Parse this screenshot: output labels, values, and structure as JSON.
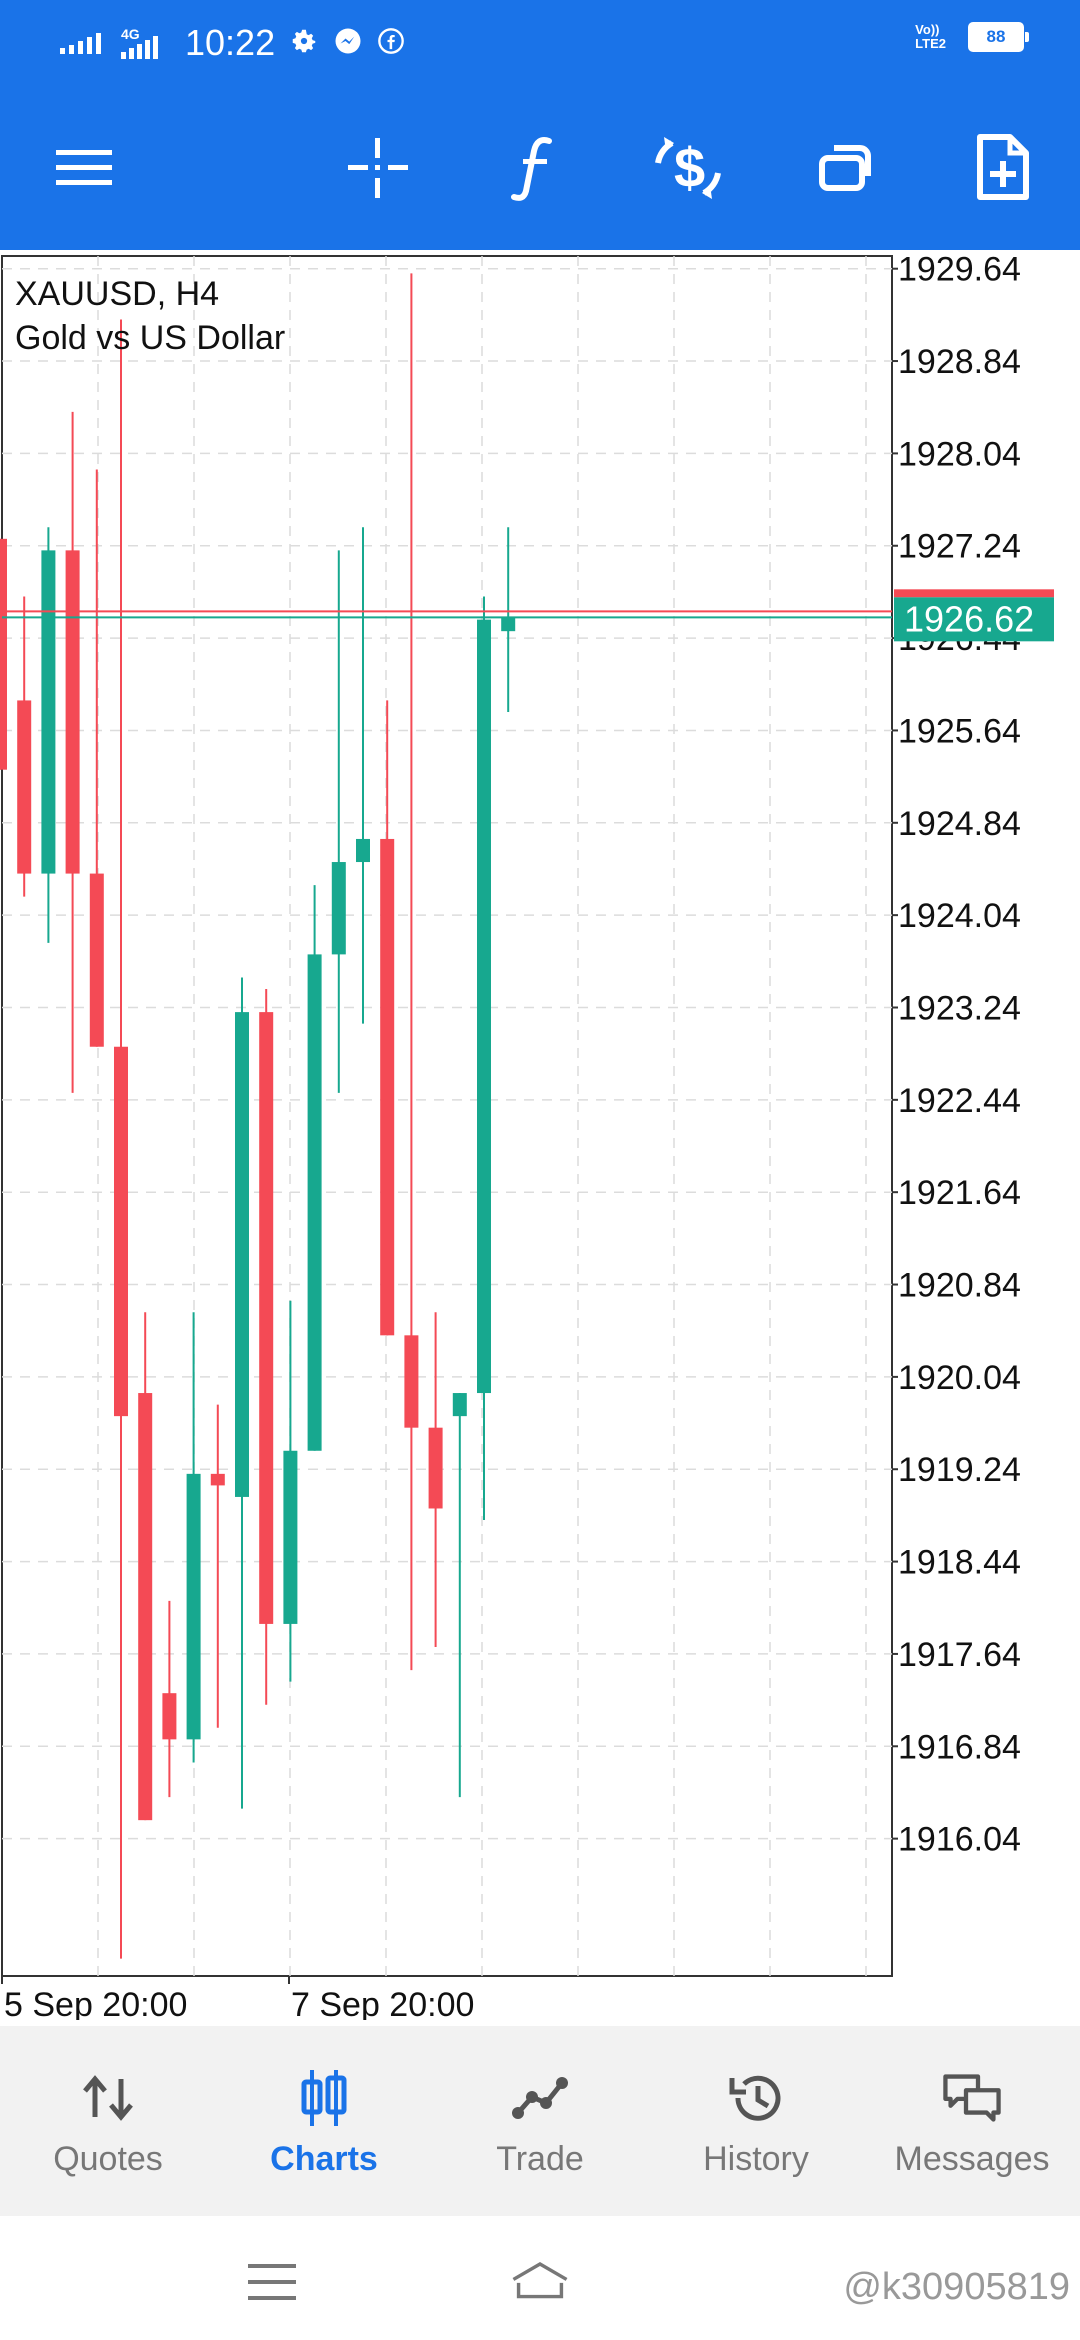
{
  "status_bar": {
    "time": "10:22",
    "network_label": "4G",
    "volte_line1": "Vo))",
    "volte_line2": "LTE2",
    "battery": "88"
  },
  "toolbar": {
    "icons": [
      "menu-icon",
      "crosshair-icon",
      "indicators-icon",
      "trade-icon",
      "windows-icon",
      "new-order-icon"
    ],
    "color": "#1a73e8"
  },
  "chart": {
    "symbol_line": "XAUUSD, H4",
    "description": "Gold vs US Dollar",
    "current_price": "1926.62",
    "price_labels": [
      "1929.64",
      "1928.84",
      "1928.04",
      "1927.24",
      "1926.44",
      "1925.64",
      "1924.84",
      "1924.04",
      "1923.24",
      "1922.44",
      "1921.64",
      "1920.84",
      "1920.04",
      "1919.24",
      "1918.44",
      "1917.64",
      "1916.84",
      "1916.04"
    ],
    "time_labels": [
      "5 Sep 20:00",
      "7 Sep 20:00"
    ],
    "colors": {
      "bull": "#17a88f",
      "bear": "#f44a55",
      "grid": "#dcdcdc",
      "axis": "#333333"
    }
  },
  "chart_data": {
    "type": "candlestick",
    "title": "XAUUSD, H4",
    "subtitle": "Gold vs US Dollar",
    "ylim": [
      1914.85,
      1929.75
    ],
    "last_price": 1926.62,
    "candles": [
      {
        "o": 1927.3,
        "h": 1927.3,
        "l": 1925.3,
        "c": 1925.3
      },
      {
        "o": 1925.9,
        "h": 1926.8,
        "l": 1924.2,
        "c": 1924.4
      },
      {
        "o": 1924.4,
        "h": 1927.4,
        "l": 1923.8,
        "c": 1927.2
      },
      {
        "o": 1927.2,
        "h": 1928.4,
        "l": 1922.5,
        "c": 1924.4
      },
      {
        "o": 1924.4,
        "h": 1927.9,
        "l": 1922.9,
        "c": 1922.9
      },
      {
        "o": 1922.9,
        "h": 1929.2,
        "l": 1915.0,
        "c": 1919.7
      },
      {
        "o": 1919.9,
        "h": 1920.6,
        "l": 1916.2,
        "c": 1916.2
      },
      {
        "o": 1917.3,
        "h": 1918.1,
        "l": 1916.4,
        "c": 1916.9
      },
      {
        "o": 1916.9,
        "h": 1920.6,
        "l": 1916.7,
        "c": 1919.2
      },
      {
        "o": 1919.2,
        "h": 1919.8,
        "l": 1917.0,
        "c": 1919.1
      },
      {
        "o": 1919.0,
        "h": 1923.5,
        "l": 1916.3,
        "c": 1923.2
      },
      {
        "o": 1923.2,
        "h": 1923.4,
        "l": 1917.2,
        "c": 1917.9
      },
      {
        "o": 1917.9,
        "h": 1920.7,
        "l": 1917.4,
        "c": 1919.4
      },
      {
        "o": 1919.4,
        "h": 1924.3,
        "l": 1919.4,
        "c": 1923.7
      },
      {
        "o": 1923.7,
        "h": 1927.2,
        "l": 1922.5,
        "c": 1924.5
      },
      {
        "o": 1924.5,
        "h": 1927.4,
        "l": 1923.1,
        "c": 1924.7
      },
      {
        "o": 1924.7,
        "h": 1925.9,
        "l": 1920.4,
        "c": 1920.4
      },
      {
        "o": 1920.4,
        "h": 1929.6,
        "l": 1917.5,
        "c": 1919.6
      },
      {
        "o": 1919.6,
        "h": 1920.6,
        "l": 1917.7,
        "c": 1918.9
      },
      {
        "o": 1919.7,
        "h": 1919.9,
        "l": 1916.4,
        "c": 1919.9
      },
      {
        "o": 1919.9,
        "h": 1926.8,
        "l": 1918.8,
        "c": 1926.6
      },
      {
        "o": 1926.5,
        "h": 1927.4,
        "l": 1925.8,
        "c": 1926.62
      }
    ]
  },
  "bottom_nav": {
    "items": [
      {
        "label": "Quotes",
        "icon": "quotes-icon"
      },
      {
        "label": "Charts",
        "icon": "charts-icon"
      },
      {
        "label": "Trade",
        "icon": "trade-chart-icon"
      },
      {
        "label": "History",
        "icon": "history-icon"
      },
      {
        "label": "Messages",
        "icon": "messages-icon"
      }
    ],
    "active": "Charts",
    "active_color": "#1a73e8"
  },
  "system_nav": {
    "icons": [
      "recent-apps-icon",
      "home-icon"
    ],
    "watermark": "@k30905819"
  }
}
